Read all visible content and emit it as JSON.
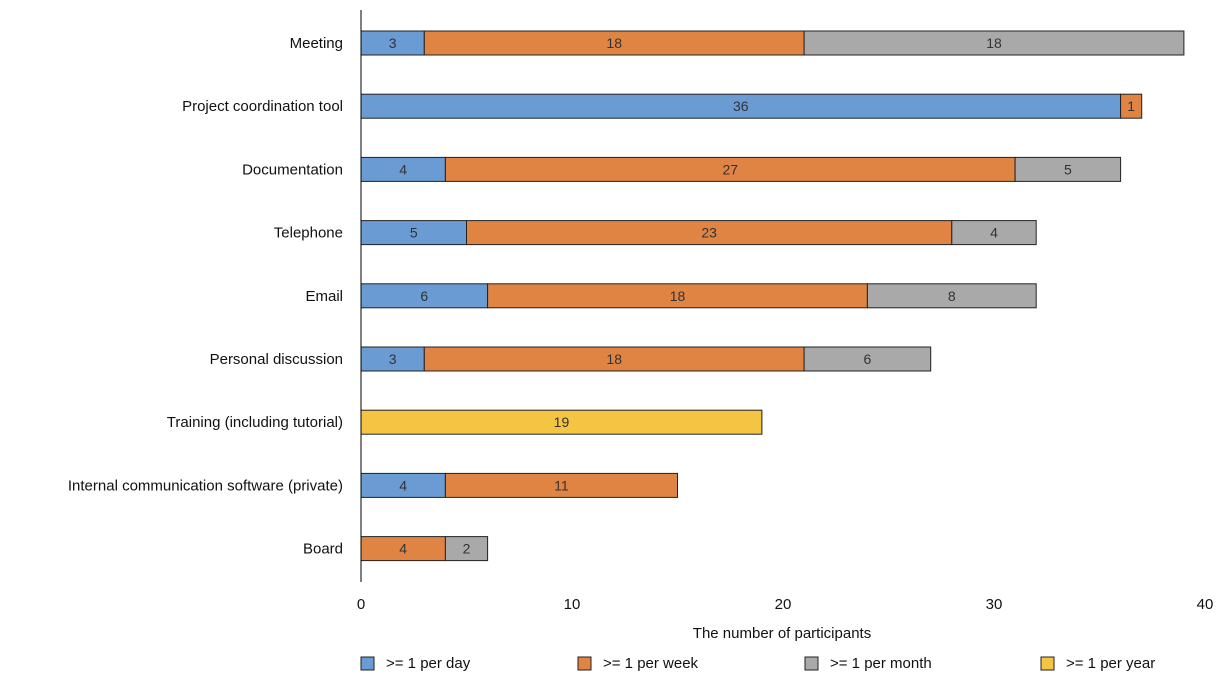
{
  "chart_data": {
    "type": "bar",
    "orientation": "horizontal",
    "stacked": true,
    "title": "",
    "xlabel": "The number of participants",
    "ylabel": "",
    "xlim": [
      0,
      40
    ],
    "xticks": [
      0,
      10,
      20,
      30,
      40
    ],
    "grid": false,
    "legend_position": "bottom",
    "categories": [
      "Meeting",
      "Project coordination tool",
      "Documentation",
      "Telephone",
      "Email",
      "Personal discussion",
      "Training (including tutorial)",
      "Internal communication software (private)",
      "Board"
    ],
    "series": [
      {
        "name": ">= 1 per day",
        "color": "#6a9bd3",
        "values": [
          3,
          36,
          4,
          5,
          6,
          3,
          0,
          4,
          0
        ]
      },
      {
        "name": ">= 1 per week",
        "color": "#e08444",
        "values": [
          18,
          1,
          27,
          23,
          18,
          18,
          0,
          11,
          4
        ]
      },
      {
        "name": ">= 1 per month",
        "color": "#a9a9a9",
        "values": [
          18,
          0,
          5,
          4,
          8,
          6,
          0,
          0,
          2
        ]
      },
      {
        "name": ">= 1 per year",
        "color": "#f4c543",
        "values": [
          0,
          0,
          0,
          0,
          0,
          0,
          19,
          0,
          0
        ]
      }
    ]
  }
}
